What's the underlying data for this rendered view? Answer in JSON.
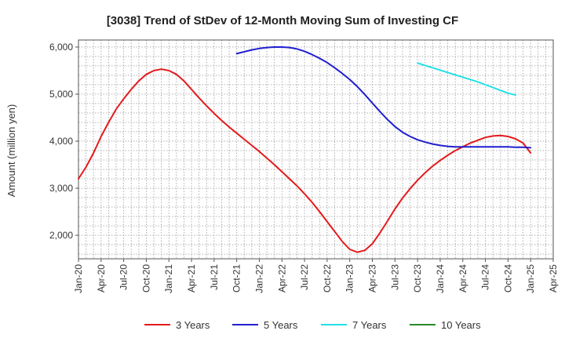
{
  "chart_data": {
    "type": "line",
    "title": "[3038]  Trend of StDev of 12-Month Moving Sum of Investing CF",
    "ylabel": "Amount (million yen)",
    "xlabel": "",
    "x_ticks": [
      "Jan-20",
      "Apr-20",
      "Jul-20",
      "Oct-20",
      "Jan-21",
      "Apr-21",
      "Jul-21",
      "Oct-21",
      "Jan-22",
      "Apr-22",
      "Jul-22",
      "Oct-22",
      "Jan-23",
      "Apr-23",
      "Jul-23",
      "Oct-23",
      "Jan-24",
      "Apr-24",
      "Jul-24",
      "Oct-24",
      "Jan-25",
      "Apr-25"
    ],
    "y_ticks": [
      2000,
      3000,
      4000,
      5000,
      6000
    ],
    "y_tick_labels": [
      "2,000",
      "3,000",
      "4,000",
      "5,000",
      "6,000"
    ],
    "ylim": [
      1500,
      6150
    ],
    "grid": true,
    "legend_position": "bottom",
    "series": [
      {
        "name": "3 Years",
        "color": "#e31a1c",
        "points": [
          [
            "2020-01",
            3200
          ],
          [
            "2020-02",
            3450
          ],
          [
            "2020-03",
            3750
          ],
          [
            "2020-04",
            4100
          ],
          [
            "2020-05",
            4400
          ],
          [
            "2020-06",
            4680
          ],
          [
            "2020-07",
            4900
          ],
          [
            "2020-08",
            5100
          ],
          [
            "2020-09",
            5280
          ],
          [
            "2020-10",
            5420
          ],
          [
            "2020-11",
            5500
          ],
          [
            "2020-12",
            5530
          ],
          [
            "2021-01",
            5500
          ],
          [
            "2021-02",
            5420
          ],
          [
            "2021-03",
            5280
          ],
          [
            "2021-04",
            5100
          ],
          [
            "2021-05",
            4920
          ],
          [
            "2021-06",
            4750
          ],
          [
            "2021-07",
            4590
          ],
          [
            "2021-08",
            4440
          ],
          [
            "2021-09",
            4300
          ],
          [
            "2021-10",
            4170
          ],
          [
            "2021-11",
            4040
          ],
          [
            "2021-12",
            3910
          ],
          [
            "2022-01",
            3780
          ],
          [
            "2022-02",
            3640
          ],
          [
            "2022-03",
            3500
          ],
          [
            "2022-04",
            3350
          ],
          [
            "2022-05",
            3200
          ],
          [
            "2022-06",
            3050
          ],
          [
            "2022-07",
            2880
          ],
          [
            "2022-08",
            2700
          ],
          [
            "2022-09",
            2500
          ],
          [
            "2022-10",
            2290
          ],
          [
            "2022-11",
            2080
          ],
          [
            "2022-12",
            1870
          ],
          [
            "2023-01",
            1700
          ],
          [
            "2023-02",
            1640
          ],
          [
            "2023-03",
            1680
          ],
          [
            "2023-04",
            1820
          ],
          [
            "2023-05",
            2050
          ],
          [
            "2023-06",
            2300
          ],
          [
            "2023-07",
            2560
          ],
          [
            "2023-08",
            2790
          ],
          [
            "2023-09",
            2990
          ],
          [
            "2023-10",
            3170
          ],
          [
            "2023-11",
            3330
          ],
          [
            "2023-12",
            3470
          ],
          [
            "2024-01",
            3590
          ],
          [
            "2024-02",
            3700
          ],
          [
            "2024-03",
            3800
          ],
          [
            "2024-04",
            3880
          ],
          [
            "2024-05",
            3960
          ],
          [
            "2024-06",
            4020
          ],
          [
            "2024-07",
            4080
          ],
          [
            "2024-08",
            4110
          ],
          [
            "2024-09",
            4120
          ],
          [
            "2024-10",
            4100
          ],
          [
            "2024-11",
            4050
          ],
          [
            "2024-12",
            3960
          ],
          [
            "2025-01",
            3750
          ]
        ]
      },
      {
        "name": "5 Years",
        "color": "#1f1fd0",
        "points": [
          [
            "2021-10",
            5860
          ],
          [
            "2021-11",
            5900
          ],
          [
            "2021-12",
            5940
          ],
          [
            "2022-01",
            5970
          ],
          [
            "2022-02",
            5990
          ],
          [
            "2022-03",
            6000
          ],
          [
            "2022-04",
            6000
          ],
          [
            "2022-05",
            5990
          ],
          [
            "2022-06",
            5960
          ],
          [
            "2022-07",
            5910
          ],
          [
            "2022-08",
            5840
          ],
          [
            "2022-09",
            5760
          ],
          [
            "2022-10",
            5670
          ],
          [
            "2022-11",
            5560
          ],
          [
            "2022-12",
            5440
          ],
          [
            "2023-01",
            5310
          ],
          [
            "2023-02",
            5160
          ],
          [
            "2023-03",
            4990
          ],
          [
            "2023-04",
            4810
          ],
          [
            "2023-05",
            4630
          ],
          [
            "2023-06",
            4460
          ],
          [
            "2023-07",
            4310
          ],
          [
            "2023-08",
            4190
          ],
          [
            "2023-09",
            4100
          ],
          [
            "2023-10",
            4030
          ],
          [
            "2023-11",
            3980
          ],
          [
            "2023-12",
            3940
          ],
          [
            "2024-01",
            3910
          ],
          [
            "2024-02",
            3890
          ],
          [
            "2024-03",
            3880
          ],
          [
            "2024-04",
            3880
          ],
          [
            "2024-05",
            3880
          ],
          [
            "2024-06",
            3880
          ],
          [
            "2024-07",
            3880
          ],
          [
            "2024-08",
            3880
          ],
          [
            "2024-09",
            3880
          ],
          [
            "2024-10",
            3880
          ],
          [
            "2024-11",
            3870
          ],
          [
            "2024-12",
            3870
          ],
          [
            "2025-01",
            3860
          ]
        ]
      },
      {
        "name": "7 Years",
        "color": "#22e0e8",
        "points": [
          [
            "2023-10",
            5660
          ],
          [
            "2023-11",
            5610
          ],
          [
            "2023-12",
            5560
          ],
          [
            "2024-01",
            5510
          ],
          [
            "2024-02",
            5460
          ],
          [
            "2024-03",
            5410
          ],
          [
            "2024-04",
            5360
          ],
          [
            "2024-05",
            5310
          ],
          [
            "2024-06",
            5260
          ],
          [
            "2024-07",
            5200
          ],
          [
            "2024-08",
            5140
          ],
          [
            "2024-09",
            5080
          ],
          [
            "2024-10",
            5020
          ],
          [
            "2024-11",
            4980
          ]
        ]
      },
      {
        "name": "10 Years",
        "color": "#2a8a2a",
        "points": []
      }
    ]
  }
}
